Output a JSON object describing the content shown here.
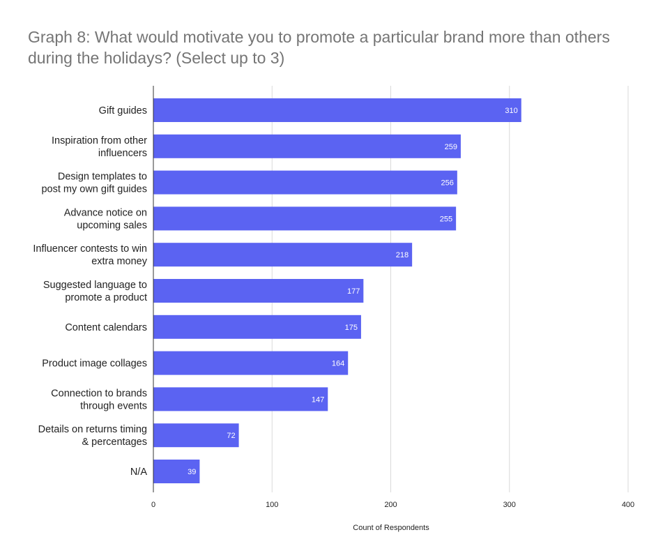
{
  "chart_data": {
    "type": "bar",
    "orientation": "horizontal",
    "title": "Graph 8: What would motivate you to promote a particular brand more than others during the holidays? (Select up to 3)",
    "xlabel": "Count of Respondents",
    "ylabel": "",
    "categories": [
      [
        "Gift guides"
      ],
      [
        "Inspiration from other",
        "influencers"
      ],
      [
        "Design templates to",
        "post my own gift guides"
      ],
      [
        "Advance notice on",
        "upcoming sales"
      ],
      [
        "Influencer contests to win",
        "extra money"
      ],
      [
        "Suggested language to",
        "promote a product"
      ],
      [
        "Content calendars"
      ],
      [
        "Product image collages"
      ],
      [
        "Connection to brands",
        "through events"
      ],
      [
        "Details on returns timing",
        "& percentages"
      ],
      [
        "N/A"
      ]
    ],
    "values": [
      310,
      259,
      256,
      255,
      218,
      177,
      175,
      164,
      147,
      72,
      39
    ],
    "data_labels": [
      "310",
      "259",
      "256",
      "255",
      "218",
      "177",
      "175",
      "164",
      "147",
      "72",
      "39"
    ],
    "xlim": [
      0,
      400
    ],
    "xticks": [
      0,
      100,
      200,
      300,
      400
    ],
    "xtick_labels": [
      "0",
      "100",
      "200",
      "300",
      "400"
    ],
    "grid": "vertical",
    "legend": "none",
    "bar_color": "#5b63f2"
  }
}
